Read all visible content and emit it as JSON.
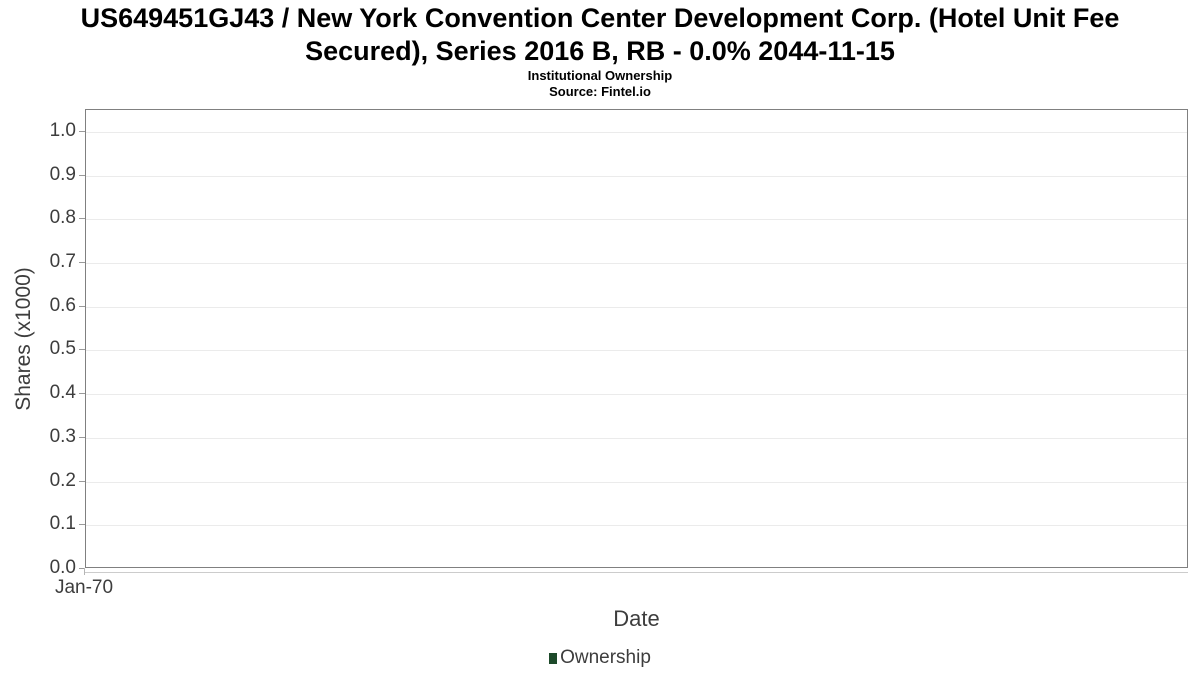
{
  "page": {
    "background": "#ffffff"
  },
  "chart": {
    "title_lines": [
      "US649451GJ43 / New York Convention Center Development Corp. (Hotel Unit Fee",
      "Secured), Series 2016 B, RB - 0.0% 2044-11-15"
    ],
    "subtitle": "Institutional Ownership",
    "source": "Source: Fintel.io"
  },
  "chart_data": {
    "type": "line",
    "title": "US649451GJ43 / New York Convention Center Development Corp. (Hotel Unit Fee Secured), Series 2016 B, RB - 0.0% 2044-11-15",
    "subtitle": "Institutional Ownership",
    "source": "Source: Fintel.io",
    "xlabel": "Date",
    "ylabel": "Shares (x1000)",
    "x_tick_labels": [
      "Jan-70"
    ],
    "y_tick_labels": [
      "0.0",
      "0.1",
      "0.2",
      "0.3",
      "0.4",
      "0.5",
      "0.6",
      "0.7",
      "0.8",
      "0.9",
      "1.0"
    ],
    "ylim": [
      0,
      1.05
    ],
    "grid": "horizontal",
    "legend_position": "bottom-center",
    "series": [
      {
        "name": "Ownership",
        "color": "#1d4a2a",
        "values": []
      }
    ]
  },
  "colors": {
    "title_text": "#000000",
    "axis_text": "#3d3d3d",
    "plot_border": "#808080",
    "gridline": "#ebebeb",
    "tick_mark": "#9a9a9a",
    "x_axis_line": "#cccccc",
    "legend_swatch": "#1d4a2a"
  }
}
